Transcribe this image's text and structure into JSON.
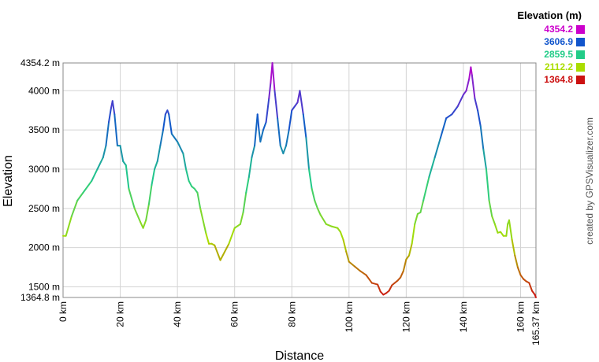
{
  "legend": {
    "title": "Elevation (m)",
    "entries": [
      {
        "label": "4354.2",
        "color": "#cc00cc"
      },
      {
        "label": "3606.9",
        "color": "#1155cc"
      },
      {
        "label": "2859.5",
        "color": "#22cc88"
      },
      {
        "label": "2112.2",
        "color": "#aadd00"
      },
      {
        "label": "1364.8",
        "color": "#cc1111"
      }
    ]
  },
  "credit": "created by GPSVisualizer.com",
  "chart_data": {
    "type": "line",
    "title": "",
    "xlabel": "Distance",
    "ylabel": "Elevation",
    "xlim": [
      0,
      165.37
    ],
    "ylim": [
      1364.8,
      4354.2
    ],
    "grid": true,
    "x_ticks": [
      {
        "value": 0,
        "label": "0 km"
      },
      {
        "value": 20,
        "label": "20 km"
      },
      {
        "value": 40,
        "label": "40 km"
      },
      {
        "value": 60,
        "label": "60 km"
      },
      {
        "value": 80,
        "label": "80 km"
      },
      {
        "value": 100,
        "label": "100 km"
      },
      {
        "value": 120,
        "label": "120 km"
      },
      {
        "value": 140,
        "label": "140 km"
      },
      {
        "value": 160,
        "label": "160 km"
      },
      {
        "value": 165.37,
        "label": "165.37 km"
      }
    ],
    "y_ticks": [
      {
        "value": 1364.8,
        "label": "1364.8 m"
      },
      {
        "value": 1500,
        "label": "1500 m"
      },
      {
        "value": 2000,
        "label": "2000 m"
      },
      {
        "value": 2500,
        "label": "2500 m"
      },
      {
        "value": 3000,
        "label": "3000 m"
      },
      {
        "value": 3500,
        "label": "3500 m"
      },
      {
        "value": 4000,
        "label": "4000 m"
      },
      {
        "value": 4354.2,
        "label": "4354.2 m"
      }
    ],
    "series": [
      {
        "x": [
          0,
          1,
          3,
          5,
          7,
          10,
          12,
          14,
          15,
          16,
          16.8,
          17.3,
          18,
          19,
          20,
          21,
          22,
          23,
          25,
          27,
          28,
          29,
          30,
          31,
          32,
          33,
          34,
          35,
          35.8,
          36.5,
          37,
          38,
          40,
          42,
          43,
          44,
          45,
          46,
          47,
          48,
          50,
          51,
          52,
          53,
          55,
          58,
          60,
          62,
          63,
          64,
          65,
          66,
          67,
          68,
          68.5,
          69,
          70,
          71,
          72,
          72.6,
          73.2,
          74,
          75,
          76,
          77,
          78,
          79,
          80,
          81,
          82,
          82.8,
          84,
          85,
          86,
          87,
          88,
          89,
          90,
          92,
          94,
          96,
          97,
          98,
          99,
          100,
          102,
          104,
          106,
          108,
          110,
          111,
          112,
          113,
          114,
          115,
          116,
          117,
          118,
          119,
          120,
          121,
          122,
          123,
          124,
          125,
          126,
          128,
          130,
          132,
          134,
          136,
          138,
          140,
          141,
          142,
          142.6,
          143,
          144,
          145,
          146,
          147,
          148,
          149,
          150,
          151,
          152,
          153,
          154,
          155,
          155.5,
          156,
          157,
          158,
          159,
          160,
          161,
          162,
          163,
          164,
          165,
          165.37
        ],
        "y": [
          2150,
          2150,
          2400,
          2600,
          2700,
          2850,
          3000,
          3150,
          3300,
          3600,
          3780,
          3870,
          3700,
          3300,
          3300,
          3100,
          3050,
          2750,
          2500,
          2330,
          2250,
          2350,
          2550,
          2800,
          3000,
          3100,
          3300,
          3500,
          3700,
          3750,
          3700,
          3450,
          3350,
          3200,
          3000,
          2850,
          2780,
          2750,
          2700,
          2500,
          2180,
          2050,
          2050,
          2030,
          1840,
          2050,
          2250,
          2300,
          2450,
          2700,
          2900,
          3150,
          3300,
          3700,
          3500,
          3350,
          3500,
          3600,
          3900,
          4100,
          4354.2,
          4000,
          3650,
          3300,
          3200,
          3300,
          3500,
          3750,
          3800,
          3850,
          4000,
          3700,
          3400,
          3000,
          2750,
          2600,
          2500,
          2420,
          2300,
          2270,
          2250,
          2200,
          2100,
          1950,
          1820,
          1760,
          1700,
          1650,
          1550,
          1530,
          1440,
          1400,
          1420,
          1450,
          1520,
          1550,
          1580,
          1620,
          1700,
          1850,
          1900,
          2050,
          2300,
          2430,
          2450,
          2600,
          2900,
          3150,
          3400,
          3650,
          3700,
          3800,
          3950,
          4000,
          4150,
          4300,
          4200,
          3900,
          3750,
          3550,
          3250,
          3000,
          2600,
          2400,
          2300,
          2190,
          2200,
          2150,
          2150,
          2300,
          2350,
          2100,
          1900,
          1750,
          1650,
          1600,
          1570,
          1550,
          1450,
          1400,
          1364.8
        ]
      }
    ]
  }
}
